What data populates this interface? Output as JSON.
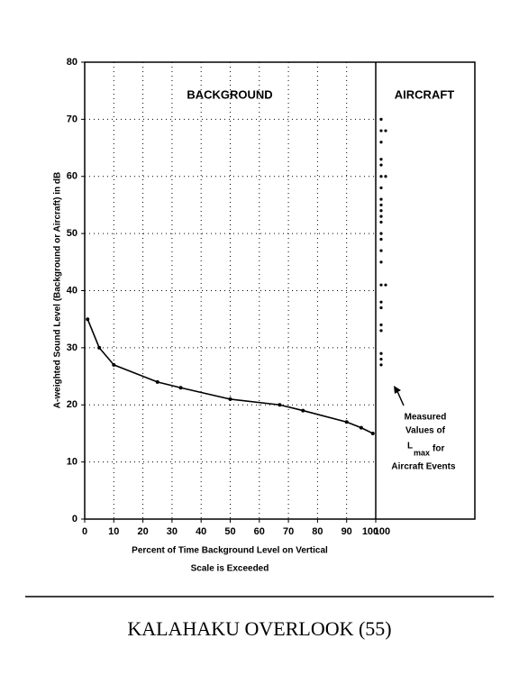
{
  "chart_data": {
    "type": "line",
    "title": "KALAHAKU OVERLOOK (55)",
    "ylabel": "A-weighted Sound Level (Background or Aircraft) in dB",
    "xlabel_lines": [
      "Percent of Time Background Level on Vertical",
      "Scale is Exceeded"
    ],
    "panel_labels": [
      "BACKGROUND",
      "AIRCRAFT"
    ],
    "x": [
      1,
      5,
      10,
      25,
      33,
      50,
      67,
      75,
      90,
      95,
      99
    ],
    "series": [
      {
        "name": "Background",
        "color": "#000000",
        "values": [
          35,
          30,
          27,
          24,
          23,
          21,
          20,
          19,
          17,
          16,
          15
        ]
      }
    ],
    "aircraft_levels": [
      70,
      68,
      68,
      66,
      63,
      62,
      60,
      60,
      58,
      56,
      55,
      54,
      53,
      52,
      50,
      49,
      47,
      45,
      41,
      41,
      38,
      37,
      34,
      33,
      29,
      28,
      27
    ],
    "aircraft_column_label": "100",
    "annotation": {
      "lines": [
        "Measured",
        "Values of"
      ],
      "symbol": "L",
      "subscript": "max",
      "after": "for",
      "last": "Aircraft Events"
    },
    "xlim": [
      0,
      100
    ],
    "xticks": [
      0,
      10,
      20,
      30,
      40,
      50,
      60,
      70,
      80,
      90,
      100
    ],
    "ylim": [
      0,
      80
    ],
    "yticks": [
      0,
      10,
      20,
      30,
      40,
      50,
      60,
      70,
      80
    ],
    "grid": true
  }
}
